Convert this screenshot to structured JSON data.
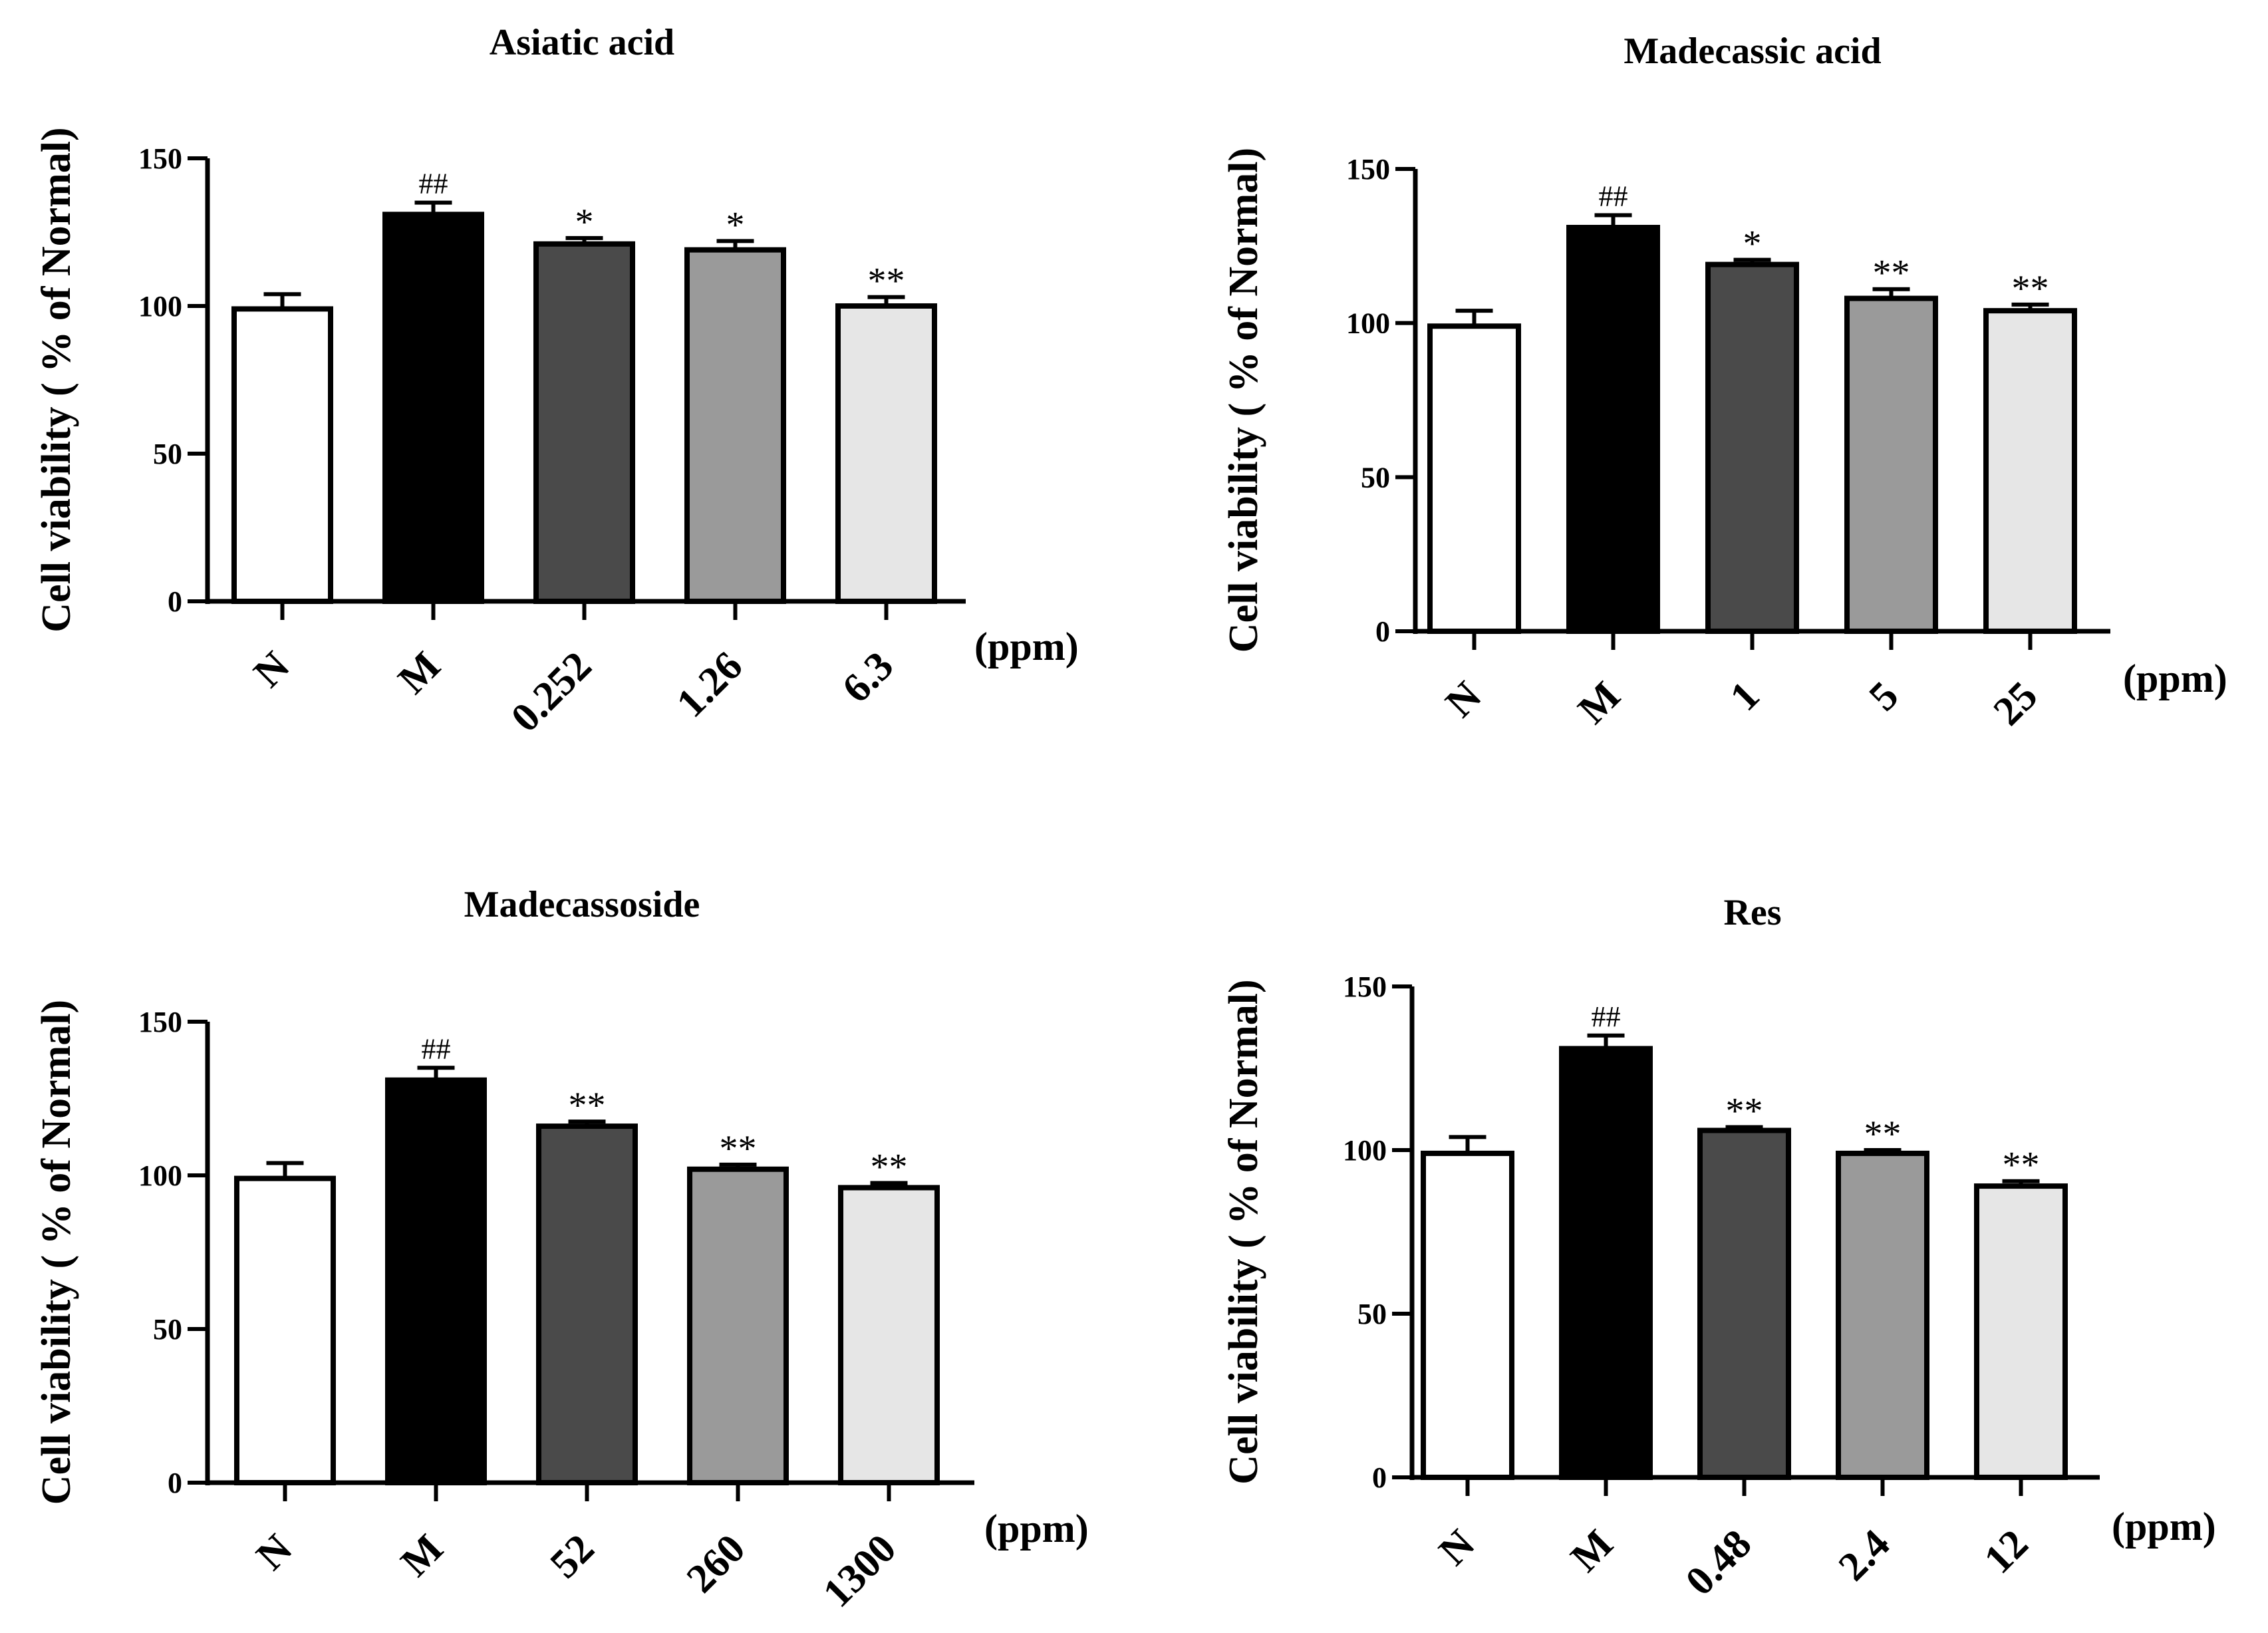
{
  "chart_data": [
    {
      "type": "bar",
      "title": "Asiatic acid",
      "ylabel": "Cell viability ( % of Normal)",
      "unit_label": "(ppm)",
      "categories": [
        "N",
        "M",
        "0.252",
        "1.26",
        "6.3"
      ],
      "values": [
        99,
        131,
        121,
        119,
        100
      ],
      "errors": [
        5,
        4,
        2,
        3,
        3
      ],
      "annotations": [
        "",
        "##",
        "*",
        "*",
        "**"
      ],
      "fills": [
        "#ffffff",
        "#000000",
        "#4a4a4a",
        "#9a9a9a",
        "#e6e6e6"
      ],
      "yticks": [
        "0",
        "50",
        "100",
        "150"
      ],
      "ylim": [
        0,
        150
      ]
    },
    {
      "type": "bar",
      "title": "Madecassic acid",
      "ylabel": "Cell viability ( % of Normal)",
      "unit_label": "(ppm)",
      "categories": [
        "N",
        "M",
        "1",
        "5",
        "25"
      ],
      "values": [
        99,
        131,
        119,
        108,
        104
      ],
      "errors": [
        5,
        4,
        1.5,
        3,
        2
      ],
      "annotations": [
        "",
        "##",
        "*",
        "**",
        "**"
      ],
      "fills": [
        "#ffffff",
        "#000000",
        "#4a4a4a",
        "#9a9a9a",
        "#e6e6e6"
      ],
      "yticks": [
        "0",
        "50",
        "100",
        "150"
      ],
      "ylim": [
        0,
        150
      ]
    },
    {
      "type": "bar",
      "title": "Madecassoside",
      "ylabel": "Cell viability ( % of Normal)",
      "unit_label": "(ppm)",
      "categories": [
        "N",
        "M",
        "52",
        "260",
        "1300"
      ],
      "values": [
        99,
        131,
        116,
        102,
        96
      ],
      "errors": [
        5,
        4,
        1.5,
        1.5,
        1.5
      ],
      "annotations": [
        "",
        "##",
        "**",
        "**",
        "**"
      ],
      "fills": [
        "#ffffff",
        "#000000",
        "#4a4a4a",
        "#9a9a9a",
        "#e6e6e6"
      ],
      "yticks": [
        "0",
        "50",
        "100",
        "150"
      ],
      "ylim": [
        0,
        150
      ]
    },
    {
      "type": "bar",
      "title": "Res",
      "ylabel": "Cell viability ( % of Normal)",
      "unit_label": "(ppm)",
      "categories": [
        "N",
        "M",
        "0.48",
        "2.4",
        "12"
      ],
      "values": [
        99,
        131,
        106,
        99,
        89
      ],
      "errors": [
        5,
        4,
        1,
        1,
        1.5
      ],
      "annotations": [
        "",
        "##",
        "**",
        "**",
        "**"
      ],
      "fills": [
        "#ffffff",
        "#000000",
        "#4a4a4a",
        "#9a9a9a",
        "#e6e6e6"
      ],
      "yticks": [
        "0",
        "50",
        "100",
        "150"
      ],
      "ylim": [
        0,
        150
      ]
    }
  ]
}
